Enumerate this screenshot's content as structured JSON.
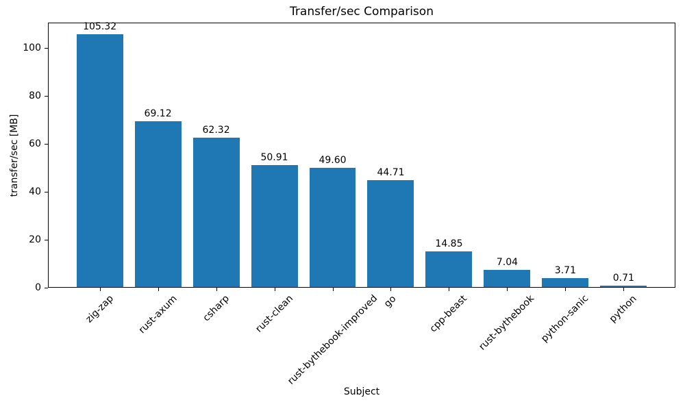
{
  "figure": {
    "background": "#ffffff",
    "text_color": "#000000"
  },
  "chart_data": {
    "type": "bar",
    "title": "Transfer/sec Comparison",
    "xlabel": "Subject",
    "ylabel": "transfer/sec [MB]",
    "categories": [
      "zig-zap",
      "rust-axum",
      "csharp",
      "rust-clean",
      "rust-bythebook-improved",
      "go",
      "cpp-beast",
      "rust-bythebook",
      "python-sanic",
      "python"
    ],
    "values": [
      105.32,
      69.12,
      62.32,
      50.91,
      49.6,
      44.71,
      14.85,
      7.04,
      3.71,
      0.71
    ],
    "value_labels": [
      "105.32",
      "69.12",
      "62.32",
      "50.91",
      "49.60",
      "44.71",
      "14.85",
      "7.04",
      "3.71",
      "0.71"
    ],
    "yticks": [
      0,
      20,
      40,
      60,
      80,
      100
    ],
    "ylim": [
      0,
      110.6
    ],
    "bar_color": "#1f77b4",
    "bar_width_frac": 0.8,
    "x_margin_frac": 0.05,
    "tick_label_rotation_deg": 45,
    "grid": false,
    "legend": null
  }
}
